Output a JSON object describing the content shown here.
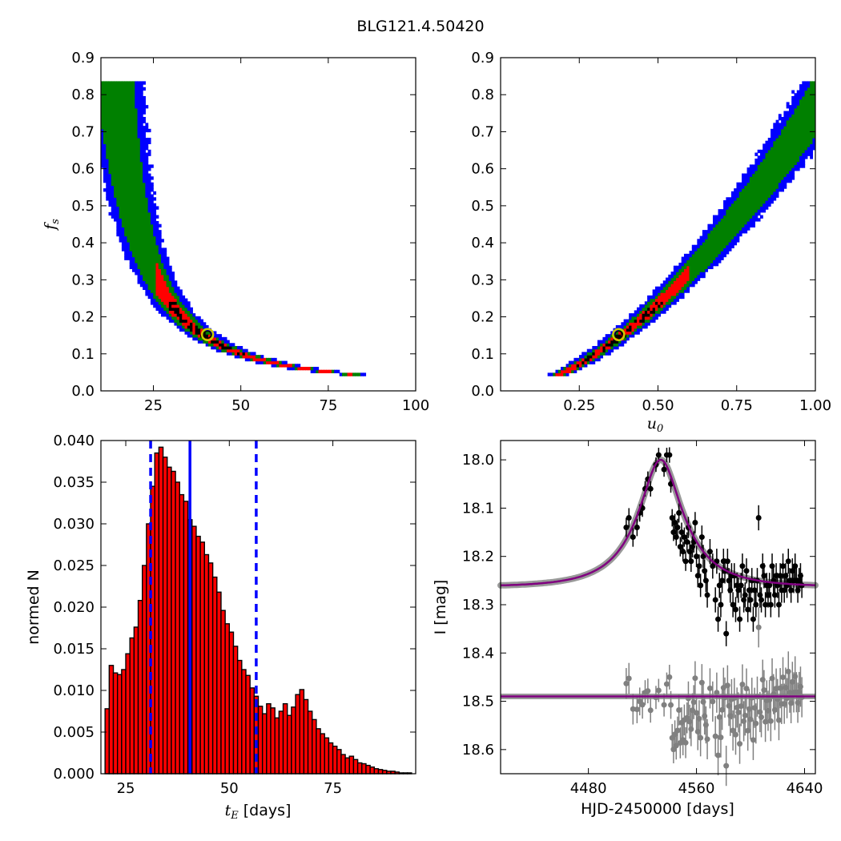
{
  "figure": {
    "title": "BLG121.4.50420"
  },
  "colors": {
    "level3": "#0000ff",
    "level2": "#008000",
    "level1": "#ff0000",
    "best": "#000000",
    "histogram_bar": "#ff0000",
    "histogram_edge": "#000000",
    "estimate_line": "#0000ff",
    "model": "#800080",
    "model_band": "#999999",
    "data_points": "#000000",
    "residuals": "#808080",
    "marker_ring": "#cccc00"
  },
  "chart_data": [
    {
      "type": "heatmap",
      "panel": "top-left",
      "xlabel": "",
      "ylabel": "f_s",
      "xlim": [
        10,
        100
      ],
      "ylim": [
        0,
        0.9
      ],
      "xticks": [
        "25",
        "50",
        "75",
        "100"
      ],
      "yticks": [
        "0.0",
        "0.1",
        "0.2",
        "0.3",
        "0.4",
        "0.5",
        "0.6",
        "0.7",
        "0.8",
        "0.9"
      ],
      "grid": false,
      "relation": "t_E = 12.6 / f_s^0.6",
      "best_fit": {
        "x": 40.5,
        "y": 0.152
      }
    },
    {
      "type": "heatmap",
      "panel": "top-right",
      "xlabel": "u_0",
      "ylabel": "",
      "xlim": [
        0.0,
        1.0
      ],
      "ylim": [
        0,
        0.9
      ],
      "xticks": [
        "0.25",
        "0.50",
        "0.75",
        "1.00"
      ],
      "yticks": [
        "0.0",
        "0.1",
        "0.2",
        "0.3",
        "0.4",
        "0.5",
        "0.6",
        "0.7",
        "0.8",
        "0.9"
      ],
      "grid": false,
      "relation": "f_s = 0.76 * u_0^1.7",
      "best_fit": {
        "x": 0.375,
        "y": 0.152
      }
    },
    {
      "type": "bar",
      "panel": "bottom-left",
      "xlabel": "t_E [days]",
      "ylabel": "normed N",
      "xlim": [
        19,
        95
      ],
      "ylim": [
        0,
        0.04
      ],
      "xticks": [
        "25",
        "50",
        "75"
      ],
      "yticks": [
        "0.000",
        "0.005",
        "0.010",
        "0.015",
        "0.020",
        "0.025",
        "0.030",
        "0.035",
        "0.040"
      ],
      "bin_start": 20,
      "bin_width": 1,
      "values": [
        0.0078,
        0.013,
        0.0121,
        0.0119,
        0.0125,
        0.0144,
        0.0163,
        0.0176,
        0.0208,
        0.025,
        0.03,
        0.0345,
        0.0385,
        0.0392,
        0.038,
        0.0368,
        0.0363,
        0.035,
        0.0335,
        0.0327,
        0.0305,
        0.0297,
        0.0285,
        0.0278,
        0.0263,
        0.0253,
        0.0236,
        0.0218,
        0.0196,
        0.018,
        0.017,
        0.0153,
        0.0136,
        0.0125,
        0.0118,
        0.0103,
        0.0093,
        0.0081,
        0.0072,
        0.0084,
        0.0079,
        0.0067,
        0.0075,
        0.0084,
        0.007,
        0.008,
        0.0095,
        0.0101,
        0.0089,
        0.0075,
        0.0065,
        0.0054,
        0.0048,
        0.0043,
        0.0037,
        0.0033,
        0.0029,
        0.0023,
        0.0019,
        0.0021,
        0.0017,
        0.0013,
        0.0012,
        0.001,
        0.0008,
        0.0006,
        0.0005,
        0.0004,
        0.0003,
        0.0003,
        0.0002,
        0.0001,
        0.0001,
        0.0001
      ],
      "lines": {
        "median": 40.5,
        "lower": 31.0,
        "upper": 56.5
      }
    },
    {
      "type": "scatter",
      "panel": "bottom-right",
      "xlabel": "HJD-2450000 [days]",
      "ylabel": "I [mag]",
      "xlim": [
        4415,
        4648
      ],
      "ylim": [
        18.65,
        17.96
      ],
      "xticks": [
        "4480",
        "4560",
        "4640"
      ],
      "yticks": [
        "18.0",
        "18.1",
        "18.2",
        "18.3",
        "18.4",
        "18.5",
        "18.6"
      ],
      "model": {
        "t0": 4533.5,
        "tE": 40.5,
        "u0": 0.375,
        "fs": 0.152,
        "I_base": 18.263
      },
      "residual_offset": 18.49,
      "points": [
        [
          4508,
          18.14,
          0.02
        ],
        [
          4510,
          18.12,
          0.02
        ],
        [
          4513,
          18.16,
          0.02
        ],
        [
          4516,
          18.14,
          0.018
        ],
        [
          4518,
          18.11,
          0.018
        ],
        [
          4520,
          18.1,
          0.018
        ],
        [
          4522,
          18.06,
          0.016
        ],
        [
          4524,
          18.04,
          0.016
        ],
        [
          4526,
          18.06,
          0.016
        ],
        [
          4530,
          18.01,
          0.015
        ],
        [
          4532,
          17.99,
          0.015
        ],
        [
          4536,
          18.02,
          0.015
        ],
        [
          4538,
          17.99,
          0.015
        ],
        [
          4540,
          17.99,
          0.016
        ],
        [
          4541,
          18.05,
          0.018
        ],
        [
          4542,
          18.12,
          0.018
        ],
        [
          4543,
          18.15,
          0.018
        ],
        [
          4544,
          18.13,
          0.018
        ],
        [
          4545,
          18.16,
          0.018
        ],
        [
          4546,
          18.14,
          0.018
        ],
        [
          4547,
          18.11,
          0.02
        ],
        [
          4548,
          18.18,
          0.02
        ],
        [
          4549,
          18.15,
          0.02
        ],
        [
          4550,
          18.19,
          0.02
        ],
        [
          4551,
          18.16,
          0.02
        ],
        [
          4552,
          18.21,
          0.02
        ],
        [
          4553,
          18.17,
          0.02
        ],
        [
          4554,
          18.14,
          0.022
        ],
        [
          4555,
          18.19,
          0.022
        ],
        [
          4556,
          18.21,
          0.022
        ],
        [
          4557,
          18.18,
          0.022
        ],
        [
          4558,
          18.17,
          0.022
        ],
        [
          4559,
          18.13,
          0.022
        ],
        [
          4560,
          18.2,
          0.022
        ],
        [
          4561,
          18.24,
          0.024
        ],
        [
          4562,
          18.22,
          0.024
        ],
        [
          4563,
          18.26,
          0.024
        ],
        [
          4564,
          18.16,
          0.024
        ],
        [
          4565,
          18.2,
          0.024
        ],
        [
          4566,
          18.23,
          0.024
        ],
        [
          4567,
          18.25,
          0.024
        ],
        [
          4568,
          18.28,
          0.026
        ],
        [
          4570,
          18.19,
          0.026
        ],
        [
          4572,
          18.22,
          0.026
        ],
        [
          4574,
          18.29,
          0.026
        ],
        [
          4575,
          18.21,
          0.026
        ],
        [
          4576,
          18.33,
          0.026
        ],
        [
          4577,
          18.26,
          0.026
        ],
        [
          4578,
          18.3,
          0.026
        ],
        [
          4579,
          18.25,
          0.026
        ],
        [
          4580,
          18.21,
          0.026
        ],
        [
          4581,
          18.23,
          0.026
        ],
        [
          4582,
          18.36,
          0.026
        ],
        [
          4583,
          18.21,
          0.026
        ],
        [
          4584,
          18.25,
          0.026
        ],
        [
          4585,
          18.27,
          0.026
        ],
        [
          4586,
          18.24,
          0.026
        ],
        [
          4587,
          18.3,
          0.026
        ],
        [
          4588,
          18.24,
          0.026
        ],
        [
          4589,
          18.31,
          0.026
        ],
        [
          4590,
          18.26,
          0.026
        ],
        [
          4591,
          18.27,
          0.026
        ],
        [
          4592,
          18.33,
          0.026
        ],
        [
          4593,
          18.26,
          0.026
        ],
        [
          4594,
          18.22,
          0.026
        ],
        [
          4595,
          18.29,
          0.026
        ],
        [
          4596,
          18.28,
          0.026
        ],
        [
          4597,
          18.23,
          0.026
        ],
        [
          4598,
          18.31,
          0.026
        ],
        [
          4599,
          18.27,
          0.026
        ],
        [
          4600,
          18.29,
          0.026
        ],
        [
          4601,
          18.25,
          0.026
        ],
        [
          4602,
          18.33,
          0.026
        ],
        [
          4603,
          18.27,
          0.026
        ],
        [
          4604,
          18.3,
          0.026
        ],
        [
          4605,
          18.25,
          0.026
        ],
        [
          4606,
          18.12,
          0.026
        ],
        [
          4607,
          18.28,
          0.026
        ],
        [
          4608,
          18.29,
          0.026
        ],
        [
          4609,
          18.22,
          0.026
        ],
        [
          4610,
          18.24,
          0.026
        ],
        [
          4611,
          18.3,
          0.026
        ],
        [
          4612,
          18.26,
          0.026
        ],
        [
          4613,
          18.28,
          0.026
        ],
        [
          4614,
          18.26,
          0.026
        ],
        [
          4615,
          18.3,
          0.026
        ],
        [
          4616,
          18.22,
          0.026
        ],
        [
          4617,
          18.25,
          0.026
        ],
        [
          4618,
          18.28,
          0.026
        ],
        [
          4619,
          18.24,
          0.026
        ],
        [
          4620,
          18.26,
          0.026
        ],
        [
          4621,
          18.3,
          0.026
        ],
        [
          4622,
          18.24,
          0.026
        ],
        [
          4623,
          18.27,
          0.026
        ],
        [
          4624,
          18.22,
          0.026
        ],
        [
          4625,
          18.27,
          0.026
        ],
        [
          4626,
          18.24,
          0.026
        ],
        [
          4627,
          18.26,
          0.026
        ],
        [
          4628,
          18.21,
          0.026
        ],
        [
          4629,
          18.25,
          0.026
        ],
        [
          4630,
          18.27,
          0.026
        ],
        [
          4631,
          18.23,
          0.026
        ],
        [
          4632,
          18.25,
          0.026
        ],
        [
          4633,
          18.22,
          0.026
        ],
        [
          4634,
          18.25,
          0.026
        ],
        [
          4635,
          18.27,
          0.026
        ],
        [
          4636,
          18.25,
          0.026
        ],
        [
          4637,
          18.24,
          0.026
        ],
        [
          4638,
          18.26,
          0.026
        ]
      ]
    }
  ]
}
